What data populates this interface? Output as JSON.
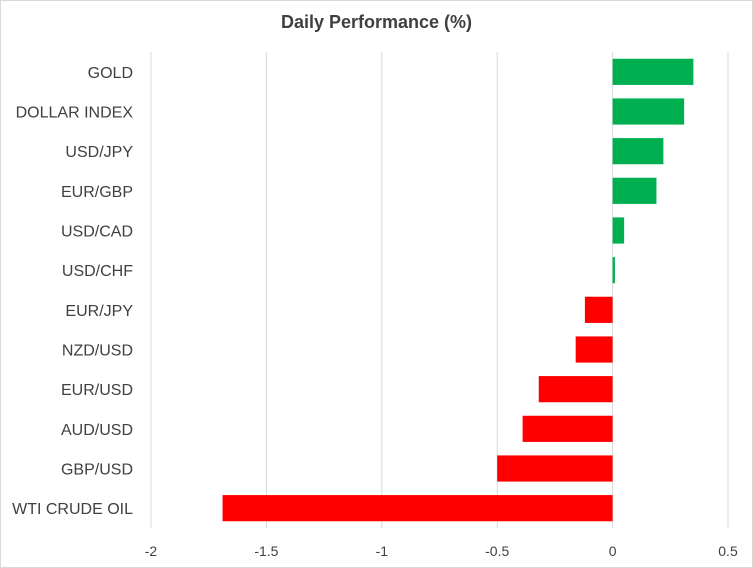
{
  "chart_data": {
    "type": "bar",
    "orientation": "horizontal",
    "title": "Daily Performance (%)",
    "xlabel": "",
    "ylabel": "",
    "xlim": [
      -2,
      0.5
    ],
    "x_ticks": [
      "-2",
      "-1.5",
      "-1",
      "-0.5",
      "0",
      "0.5"
    ],
    "grid": true,
    "legend": "none",
    "positive_color": "#00b050",
    "negative_color": "#ff0000",
    "categories": [
      "GOLD",
      "DOLLAR INDEX",
      "USD/JPY",
      "EUR/GBP",
      "USD/CAD",
      "USD/CHF",
      "EUR/JPY",
      "NZD/USD",
      "EUR/USD",
      "AUD/USD",
      "GBP/USD",
      "WTI CRUDE OIL"
    ],
    "values": [
      0.35,
      0.31,
      0.22,
      0.19,
      0.05,
      0.01,
      -0.12,
      -0.16,
      -0.32,
      -0.39,
      -0.5,
      -1.69
    ]
  }
}
